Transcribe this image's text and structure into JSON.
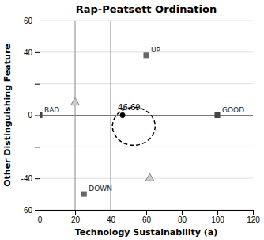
{
  "chart_data": {
    "type": "scatter",
    "title": "Rap-Peatsett Ordination",
    "x_label": "Technology Sustainability (a)",
    "y_label": "Other Distinguishing Feature",
    "xlim": [
      0,
      120
    ],
    "ylim": [
      -60,
      60
    ],
    "xticks": [
      0,
      20,
      40,
      60,
      80,
      100,
      120
    ],
    "yticks": [
      -60,
      -40,
      {
        "value": -20,
        "label": null
      },
      0,
      {
        "value": 20,
        "label": null
      },
      40,
      60
    ],
    "grid": "y",
    "reference_lines": {
      "x": [
        20,
        40
      ],
      "y": [
        0
      ]
    },
    "series": [
      {
        "marker": "square",
        "x": [
          0,
          100,
          60,
          25
        ],
        "values": [
          0,
          0,
          38,
          -50
        ],
        "labels": [
          "BAD",
          "GOOD",
          "UP",
          "DOWN"
        ],
        "colors": [
          "#444444",
          "#444444",
          "#666666",
          "#666666"
        ]
      },
      {
        "marker": "triangle",
        "color": "#cccccc",
        "x": [
          20,
          62
        ],
        "values": [
          8,
          -40
        ]
      },
      {
        "marker": "circle",
        "color": "#000000",
        "x": [
          46.69
        ],
        "values": [
          0
        ],
        "labels": [
          "46.69"
        ]
      }
    ],
    "circle": {
      "center": [
        53,
        -7
      ],
      "radius": 12,
      "line_style": "dashed"
    }
  }
}
